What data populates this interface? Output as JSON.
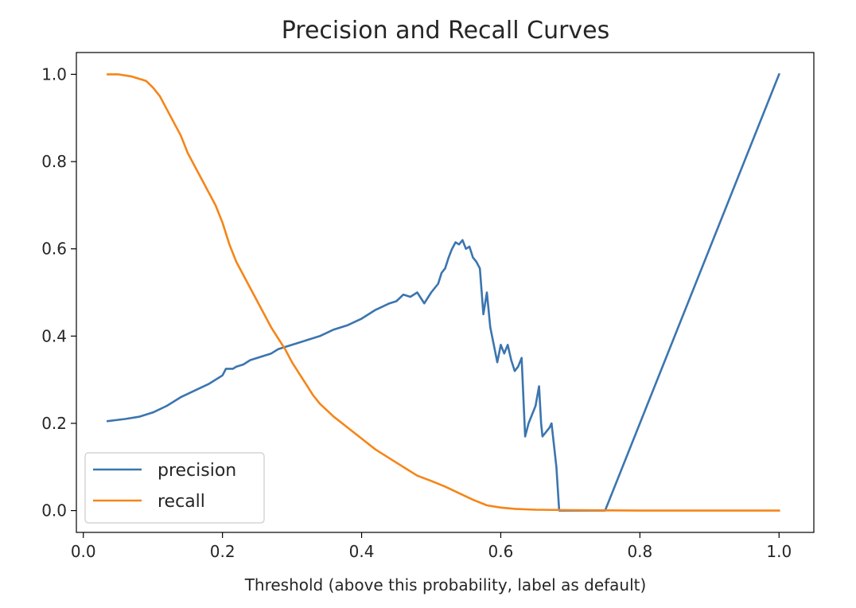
{
  "chart_data": {
    "type": "line",
    "title": "Precision and Recall Curves",
    "xlabel": "Threshold (above this probability, label as default)",
    "ylabel": "",
    "xlim": [
      -0.01,
      1.05
    ],
    "ylim": [
      -0.05,
      1.05
    ],
    "xticks": [
      0.0,
      0.2,
      0.4,
      0.6,
      0.8,
      1.0
    ],
    "xtick_labels": [
      "0.0",
      "0.2",
      "0.4",
      "0.6",
      "0.8",
      "1.0"
    ],
    "yticks": [
      0.0,
      0.2,
      0.4,
      0.6,
      0.8,
      1.0
    ],
    "ytick_labels": [
      "0.0",
      "0.2",
      "0.4",
      "0.6",
      "0.8",
      "1.0"
    ],
    "grid": false,
    "legend_position": "lower-left",
    "series": [
      {
        "name": "precision",
        "color": "#3b75af",
        "points": [
          [
            0.035,
            0.205
          ],
          [
            0.06,
            0.21
          ],
          [
            0.08,
            0.215
          ],
          [
            0.1,
            0.225
          ],
          [
            0.12,
            0.24
          ],
          [
            0.14,
            0.26
          ],
          [
            0.16,
            0.275
          ],
          [
            0.18,
            0.29
          ],
          [
            0.2,
            0.31
          ],
          [
            0.205,
            0.325
          ],
          [
            0.215,
            0.325
          ],
          [
            0.22,
            0.33
          ],
          [
            0.23,
            0.335
          ],
          [
            0.24,
            0.345
          ],
          [
            0.25,
            0.35
          ],
          [
            0.26,
            0.355
          ],
          [
            0.27,
            0.36
          ],
          [
            0.28,
            0.37
          ],
          [
            0.3,
            0.38
          ],
          [
            0.32,
            0.39
          ],
          [
            0.34,
            0.4
          ],
          [
            0.36,
            0.415
          ],
          [
            0.38,
            0.425
          ],
          [
            0.4,
            0.44
          ],
          [
            0.42,
            0.46
          ],
          [
            0.44,
            0.475
          ],
          [
            0.45,
            0.48
          ],
          [
            0.46,
            0.495
          ],
          [
            0.47,
            0.49
          ],
          [
            0.48,
            0.5
          ],
          [
            0.49,
            0.475
          ],
          [
            0.5,
            0.5
          ],
          [
            0.51,
            0.52
          ],
          [
            0.515,
            0.545
          ],
          [
            0.52,
            0.555
          ],
          [
            0.525,
            0.58
          ],
          [
            0.53,
            0.6
          ],
          [
            0.535,
            0.615
          ],
          [
            0.54,
            0.61
          ],
          [
            0.545,
            0.62
          ],
          [
            0.55,
            0.6
          ],
          [
            0.555,
            0.605
          ],
          [
            0.56,
            0.58
          ],
          [
            0.565,
            0.57
          ],
          [
            0.57,
            0.555
          ],
          [
            0.575,
            0.45
          ],
          [
            0.58,
            0.5
          ],
          [
            0.585,
            0.42
          ],
          [
            0.59,
            0.38
          ],
          [
            0.595,
            0.34
          ],
          [
            0.6,
            0.38
          ],
          [
            0.605,
            0.36
          ],
          [
            0.61,
            0.38
          ],
          [
            0.615,
            0.345
          ],
          [
            0.62,
            0.32
          ],
          [
            0.625,
            0.33
          ],
          [
            0.63,
            0.35
          ],
          [
            0.632,
            0.28
          ],
          [
            0.635,
            0.17
          ],
          [
            0.64,
            0.2
          ],
          [
            0.645,
            0.22
          ],
          [
            0.65,
            0.24
          ],
          [
            0.655,
            0.285
          ],
          [
            0.658,
            0.2
          ],
          [
            0.66,
            0.17
          ],
          [
            0.665,
            0.18
          ],
          [
            0.67,
            0.19
          ],
          [
            0.673,
            0.2
          ],
          [
            0.68,
            0.1
          ],
          [
            0.684,
            0.0
          ],
          [
            0.75,
            0.0
          ],
          [
            1.0,
            1.0
          ]
        ]
      },
      {
        "name": "recall",
        "color": "#f58518",
        "points": [
          [
            0.035,
            1.0
          ],
          [
            0.05,
            1.0
          ],
          [
            0.07,
            0.995
          ],
          [
            0.09,
            0.985
          ],
          [
            0.1,
            0.97
          ],
          [
            0.11,
            0.95
          ],
          [
            0.12,
            0.92
          ],
          [
            0.13,
            0.89
          ],
          [
            0.14,
            0.86
          ],
          [
            0.145,
            0.84
          ],
          [
            0.15,
            0.82
          ],
          [
            0.17,
            0.76
          ],
          [
            0.19,
            0.7
          ],
          [
            0.2,
            0.66
          ],
          [
            0.21,
            0.61
          ],
          [
            0.22,
            0.57
          ],
          [
            0.23,
            0.54
          ],
          [
            0.24,
            0.51
          ],
          [
            0.25,
            0.48
          ],
          [
            0.26,
            0.45
          ],
          [
            0.27,
            0.42
          ],
          [
            0.28,
            0.395
          ],
          [
            0.29,
            0.37
          ],
          [
            0.3,
            0.34
          ],
          [
            0.31,
            0.315
          ],
          [
            0.32,
            0.29
          ],
          [
            0.33,
            0.265
          ],
          [
            0.34,
            0.245
          ],
          [
            0.36,
            0.215
          ],
          [
            0.38,
            0.19
          ],
          [
            0.4,
            0.165
          ],
          [
            0.42,
            0.14
          ],
          [
            0.44,
            0.12
          ],
          [
            0.46,
            0.1
          ],
          [
            0.48,
            0.08
          ],
          [
            0.5,
            0.068
          ],
          [
            0.52,
            0.055
          ],
          [
            0.54,
            0.04
          ],
          [
            0.56,
            0.025
          ],
          [
            0.58,
            0.012
          ],
          [
            0.6,
            0.007
          ],
          [
            0.62,
            0.004
          ],
          [
            0.65,
            0.002
          ],
          [
            0.7,
            0.001
          ],
          [
            0.8,
            0.0
          ],
          [
            1.0,
            0.0
          ]
        ]
      }
    ]
  }
}
